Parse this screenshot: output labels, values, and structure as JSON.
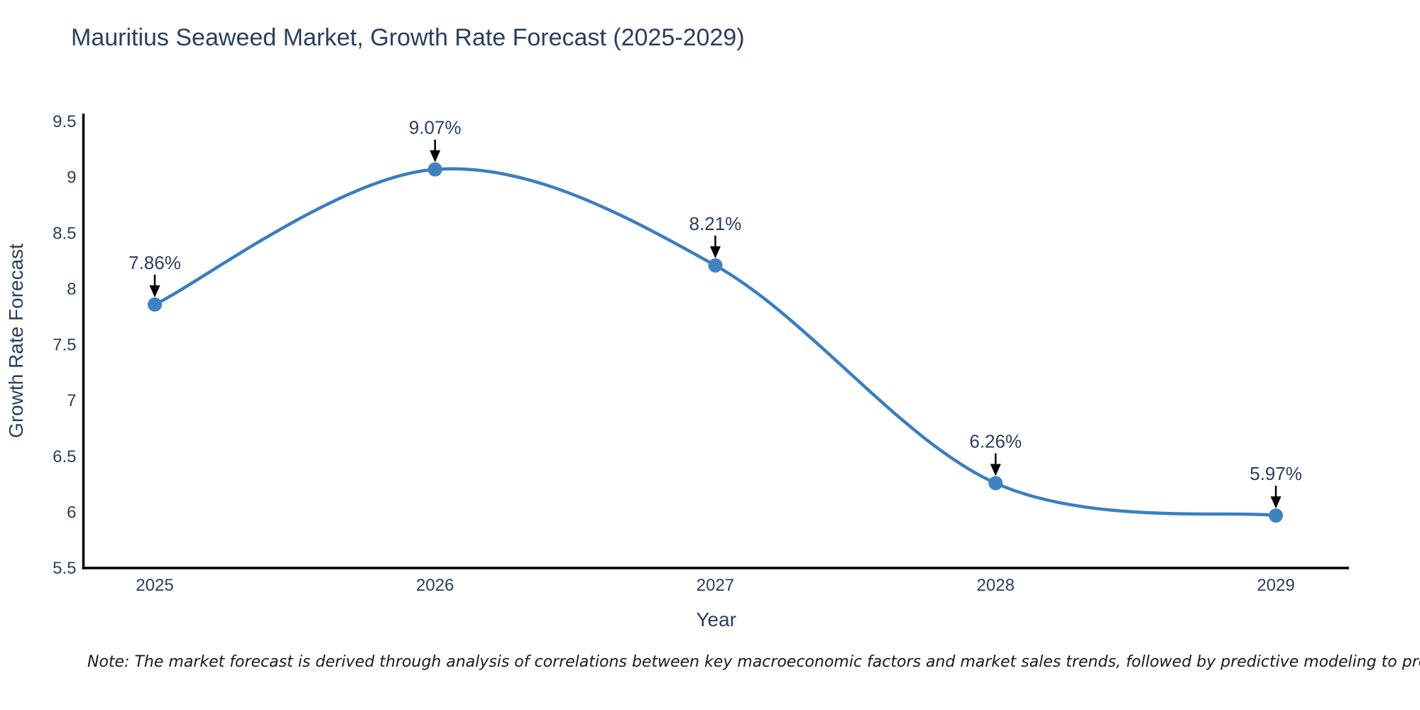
{
  "chart_data": {
    "type": "line",
    "title": "Mauritius Seaweed Market, Growth Rate Forecast (2025-2029)",
    "xlabel": "Year",
    "ylabel": "Growth Rate Forecast",
    "categories": [
      "2025",
      "2026",
      "2027",
      "2028",
      "2029"
    ],
    "series": [
      {
        "name": "Growth Rate Forecast",
        "values": [
          7.86,
          9.07,
          8.21,
          6.26,
          5.97
        ]
      }
    ],
    "point_labels": [
      "7.86%",
      "9.07%",
      "8.21%",
      "6.26%",
      "5.97%"
    ],
    "ylim": [
      5.5,
      9.5
    ],
    "yticks": [
      "5.5",
      "6",
      "6.5",
      "7",
      "7.5",
      "8",
      "8.5",
      "9",
      "9.5"
    ],
    "grid": false,
    "legend_position": "none",
    "line_shape": "spline",
    "colors": {
      "line": "#3a7ebf",
      "marker": "#3f82c1",
      "axis": "#000000",
      "text": "#2a3f5f",
      "arrow": "#000000",
      "note_text": "#1a1a1a",
      "background": "#ffffff"
    }
  },
  "note": "Note: The market forecast is derived through analysis of correlations between key macroeconomic factors and market sales trends, followed by predictive modeling to project future sales volumes."
}
